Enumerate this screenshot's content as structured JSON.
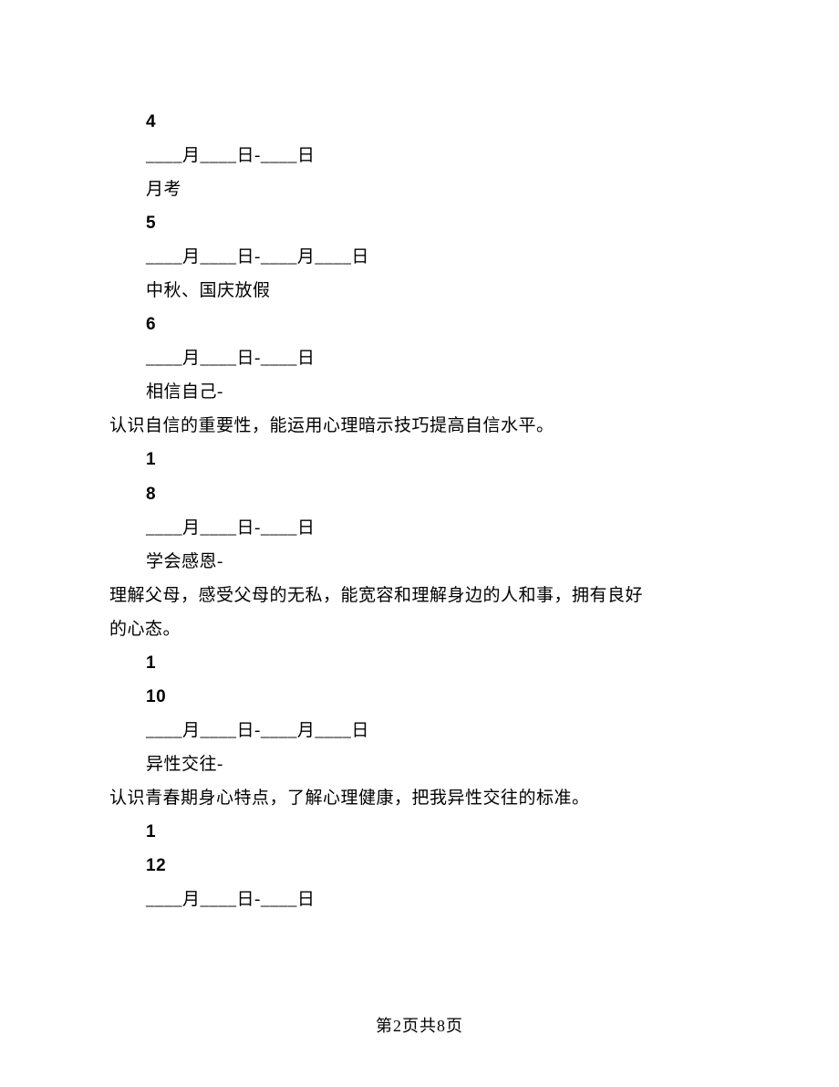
{
  "lines": [
    {
      "text": "4",
      "indented": true,
      "bold": true
    },
    {
      "text": "____月____日-____日",
      "indented": true,
      "bold": false
    },
    {
      "text": "月考",
      "indented": true,
      "bold": false
    },
    {
      "text": "5",
      "indented": true,
      "bold": true
    },
    {
      "text": "____月____日-____月____日",
      "indented": true,
      "bold": false
    },
    {
      "text": "中秋、国庆放假",
      "indented": true,
      "bold": false
    },
    {
      "text": "6",
      "indented": true,
      "bold": true
    },
    {
      "text": "____月____日-____日",
      "indented": true,
      "bold": false
    },
    {
      "text": "相信自己-",
      "indented": true,
      "bold": false
    },
    {
      "text": "认识自信的重要性，能运用心理暗示技巧提高自信水平。",
      "indented": false,
      "bold": false
    },
    {
      "text": "1",
      "indented": true,
      "bold": true
    },
    {
      "text": "8",
      "indented": true,
      "bold": true
    },
    {
      "text": "____月____日-____日",
      "indented": true,
      "bold": false
    },
    {
      "text": "学会感恩-",
      "indented": true,
      "bold": false
    },
    {
      "text": "理解父母，感受父母的无私，能宽容和理解身边的人和事，拥有良好",
      "indented": false,
      "bold": false
    },
    {
      "text": "的心态。",
      "indented": false,
      "bold": false
    },
    {
      "text": "1",
      "indented": true,
      "bold": true
    },
    {
      "text": "10",
      "indented": true,
      "bold": true
    },
    {
      "text": "____月____日-____月____日",
      "indented": true,
      "bold": false
    },
    {
      "text": "异性交往-",
      "indented": true,
      "bold": false
    },
    {
      "text": "认识青春期身心特点，了解心理健康，把我异性交往的标准。",
      "indented": false,
      "bold": false
    },
    {
      "text": "1",
      "indented": true,
      "bold": true
    },
    {
      "text": "12",
      "indented": true,
      "bold": true
    },
    {
      "text": "____月____日-____日",
      "indented": true,
      "bold": false
    }
  ],
  "footer": "第2页共8页"
}
